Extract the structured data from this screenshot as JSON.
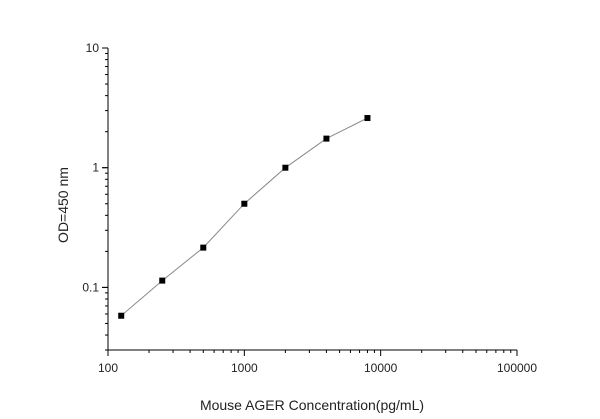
{
  "chart_data": {
    "type": "scatter",
    "title": "",
    "xlabel": "Mouse AGER  Concentration(pg/mL)",
    "ylabel": "OD=450 nm",
    "x_scale": "log",
    "y_scale": "log",
    "xlim": [
      100,
      100000
    ],
    "ylim": [
      0.03,
      10
    ],
    "x_ticks": [
      100,
      1000,
      10000,
      100000
    ],
    "x_tick_labels": [
      "100",
      "1000",
      "10000",
      "100000"
    ],
    "y_ticks": [
      0.1,
      1,
      10
    ],
    "y_tick_labels": [
      "0.1",
      "1",
      "10"
    ],
    "grid": false,
    "legend": "none",
    "marker": "square",
    "connected": true,
    "line_color": "#888888",
    "marker_color": "#000000",
    "x": [
      125,
      250,
      500,
      1000,
      2000,
      4000,
      8000
    ],
    "y": [
      0.058,
      0.114,
      0.215,
      0.5,
      1.0,
      1.75,
      2.6
    ]
  }
}
